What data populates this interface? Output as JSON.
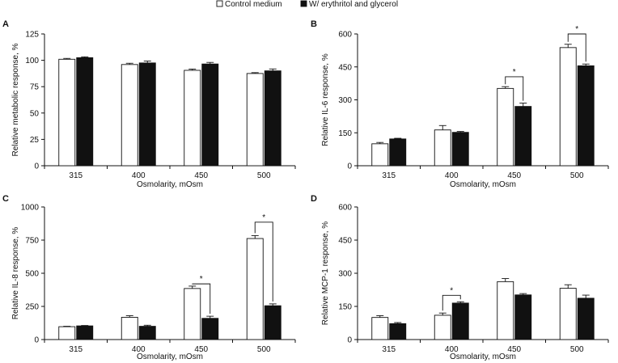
{
  "legend": {
    "items": [
      {
        "label": "Control medium",
        "fill": "#ffffff"
      },
      {
        "label": "W/ erythritol and glycerol",
        "fill": "#111111"
      }
    ]
  },
  "colors": {
    "control": "#ffffff",
    "treated": "#111111",
    "stroke": "#111111"
  },
  "chart_data": [
    {
      "panel": "A",
      "type": "bar",
      "categories": [
        "315",
        "400",
        "450",
        "500"
      ],
      "series": [
        {
          "name": "Control medium",
          "values": [
            101,
            96,
            90.5,
            87.5
          ],
          "errors": [
            0.8,
            1.2,
            1.2,
            0.8
          ]
        },
        {
          "name": "W/ erythritol and glycerol",
          "values": [
            102.5,
            97.5,
            96.5,
            90
          ],
          "errors": [
            0.8,
            1.8,
            1.5,
            1.8
          ]
        }
      ],
      "xlabel": "Osmolarity, mOsm",
      "ylabel": "Relative metabolic response, %",
      "ylim": [
        0,
        125
      ],
      "yticks": [
        0,
        25,
        50,
        75,
        100,
        125
      ],
      "significance": []
    },
    {
      "panel": "B",
      "type": "bar",
      "categories": [
        "315",
        "400",
        "450",
        "500"
      ],
      "series": [
        {
          "name": "Control medium",
          "values": [
            100,
            163,
            352,
            538
          ],
          "errors": [
            6,
            20,
            8,
            15
          ]
        },
        {
          "name": "W/ erythritol and glycerol",
          "values": [
            122,
            152,
            270,
            455
          ],
          "errors": [
            3,
            4,
            15,
            8
          ]
        }
      ],
      "xlabel": "Osmolarity, mOsm",
      "ylabel": "Relative IL-6 response, %",
      "ylim": [
        0,
        600
      ],
      "yticks": [
        0,
        150,
        300,
        450,
        600
      ],
      "significance": [
        {
          "category": "450",
          "label": "*",
          "level": 405
        },
        {
          "category": "500",
          "label": "*",
          "level": 600
        }
      ]
    },
    {
      "panel": "C",
      "type": "bar",
      "categories": [
        "315",
        "400",
        "450",
        "500"
      ],
      "series": [
        {
          "name": "Control medium",
          "values": [
            97,
            168,
            385,
            762
          ],
          "errors": [
            3,
            12,
            18,
            22
          ]
        },
        {
          "name": "W/ erythritol and glycerol",
          "values": [
            103,
            100,
            160,
            255
          ],
          "errors": [
            3,
            8,
            16,
            14
          ]
        }
      ],
      "xlabel": "Osmolarity, mOsm",
      "ylabel": "Relative IL-8 response, %",
      "ylim": [
        0,
        1000
      ],
      "yticks": [
        0,
        250,
        500,
        750,
        1000
      ],
      "significance": [
        {
          "category": "450",
          "label": "*",
          "level": 420
        },
        {
          "category": "500",
          "label": "*",
          "level": 885
        }
      ]
    },
    {
      "panel": "D",
      "type": "bar",
      "categories": [
        "315",
        "400",
        "450",
        "500"
      ],
      "series": [
        {
          "name": "Control medium",
          "values": [
            100,
            110,
            262,
            232
          ],
          "errors": [
            8,
            10,
            14,
            16
          ]
        },
        {
          "name": "W/ erythritol and glycerol",
          "values": [
            72,
            165,
            202,
            187
          ],
          "errors": [
            5,
            6,
            6,
            14
          ]
        }
      ],
      "xlabel": "Osmolarity, mOsm",
      "ylabel": "Relative MCP-1 response, %",
      "ylim": [
        0,
        600
      ],
      "yticks": [
        0,
        150,
        300,
        450,
        600
      ],
      "significance": [
        {
          "category": "400",
          "label": "*",
          "level": 200
        }
      ]
    }
  ]
}
